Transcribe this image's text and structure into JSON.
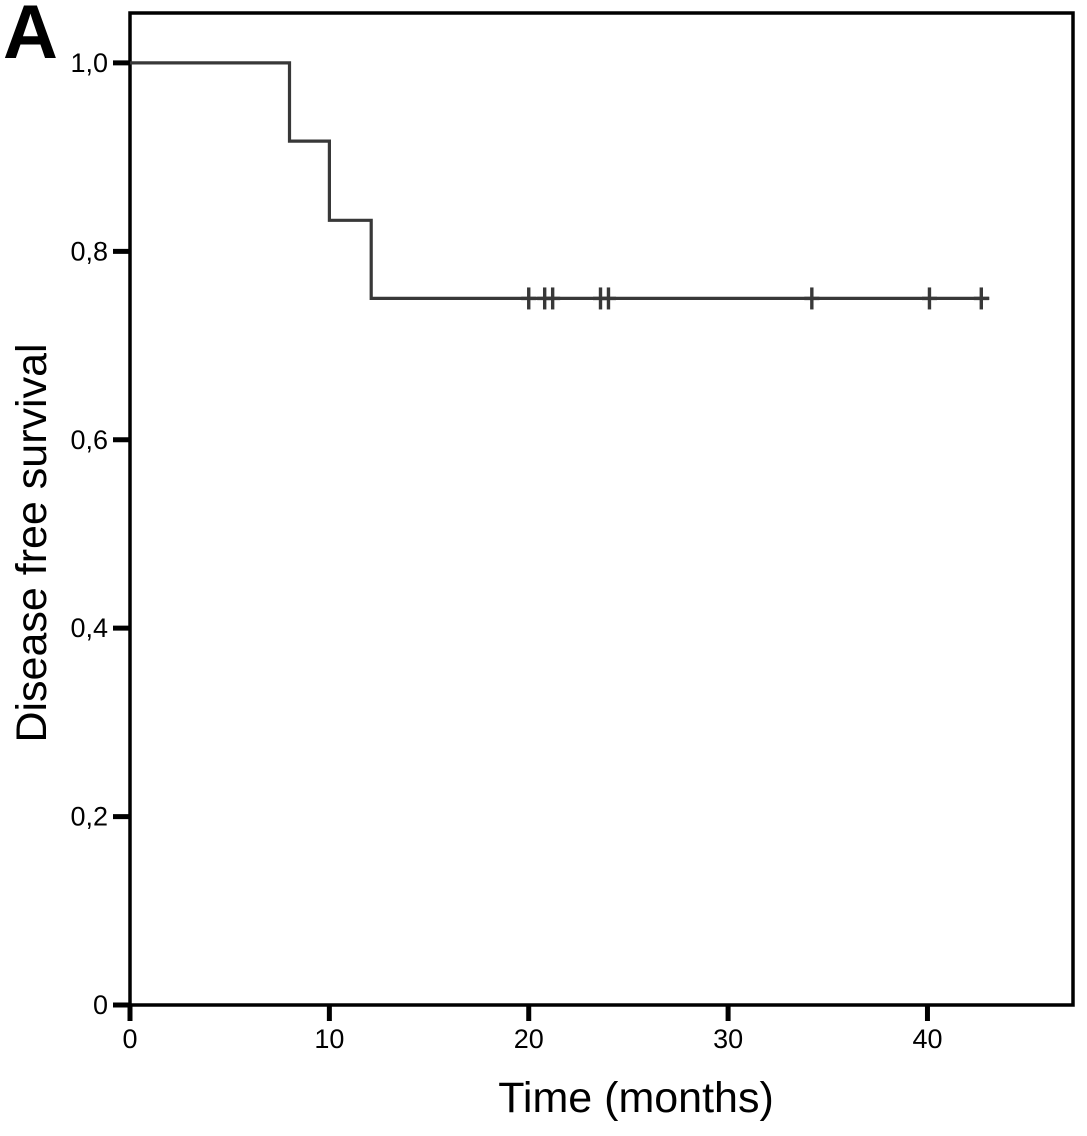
{
  "colors": {
    "curve": "#383838",
    "axis": "#000000",
    "background": "#ffffff",
    "text": "#000000"
  },
  "chart_data": {
    "type": "line",
    "chart_style": "kaplan-meier-step",
    "panel_label": "A",
    "title": "",
    "xlabel": "Time (months)",
    "ylabel": "Disease free survival",
    "xlim": [
      0,
      47.3
    ],
    "ylim": [
      0,
      1.053
    ],
    "grid": false,
    "legend_position": "none",
    "decimal_separator": ",",
    "x_ticks": [
      {
        "value": 0,
        "label": "0"
      },
      {
        "value": 10,
        "label": "10"
      },
      {
        "value": 20,
        "label": "20"
      },
      {
        "value": 30,
        "label": "30"
      },
      {
        "value": 40,
        "label": "40"
      }
    ],
    "y_ticks": [
      {
        "value": 1.0,
        "label": "1,0"
      },
      {
        "value": 0.8,
        "label": "0,8"
      },
      {
        "value": 0.6,
        "label": "0,6"
      },
      {
        "value": 0.4,
        "label": "0,4"
      },
      {
        "value": 0.2,
        "label": "0,2"
      },
      {
        "value": 0.0,
        "label": "0"
      }
    ],
    "series": [
      {
        "name": "Disease free survival",
        "draw": "step",
        "color": "#383838",
        "points": [
          [
            0,
            1.0
          ],
          [
            8,
            1.0
          ],
          [
            8,
            0.917
          ],
          [
            10,
            0.917
          ],
          [
            10,
            0.833
          ],
          [
            12.1,
            0.833
          ],
          [
            12.1,
            0.75
          ],
          [
            43.1,
            0.75
          ]
        ],
        "censored": [
          {
            "time": 20.0,
            "value": 0.75
          },
          {
            "time": 20.8,
            "value": 0.75
          },
          {
            "time": 21.2,
            "value": 0.75
          },
          {
            "time": 23.6,
            "value": 0.75
          },
          {
            "time": 24.0,
            "value": 0.75
          },
          {
            "time": 34.2,
            "value": 0.75
          },
          {
            "time": 40.1,
            "value": 0.75
          },
          {
            "time": 42.7,
            "value": 0.75
          }
        ]
      }
    ]
  }
}
